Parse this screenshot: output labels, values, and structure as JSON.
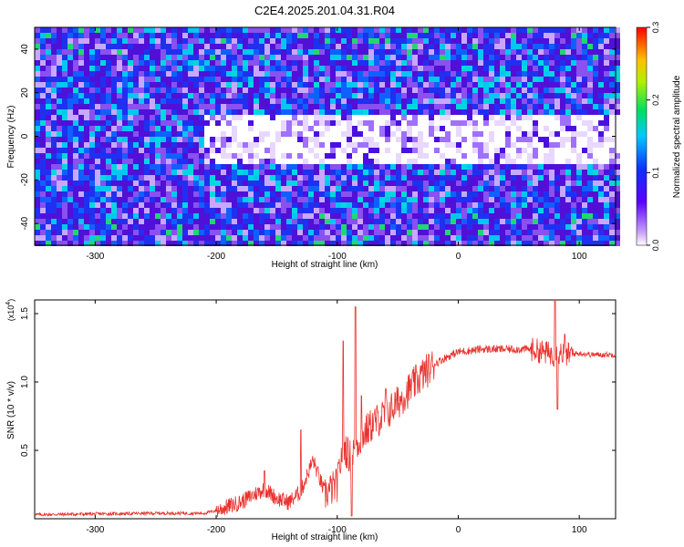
{
  "figure_title": "C2E4.2025.201.04.31.R04",
  "colors": {
    "snr_line": "#e8322e",
    "frame": "#000000"
  },
  "chart_data": [
    {
      "type": "heatmap",
      "xlabel": "Height of straight line (km)",
      "ylabel": "Frequency (Hz)",
      "xlim": [
        -350,
        130
      ],
      "ylim": [
        -50,
        50
      ],
      "x_ticks": [
        -300,
        -200,
        -100,
        0,
        100
      ],
      "x_tick_labels": [
        "-300",
        "-200",
        "-100",
        "0",
        "100"
      ],
      "y_ticks": [
        -40,
        -20,
        0,
        20,
        40
      ],
      "y_tick_labels": [
        "-40",
        "-20",
        "0",
        "20",
        "40"
      ],
      "colorbar": {
        "label": "Normalized spectral amplitude",
        "range": [
          0.0,
          0.3
        ],
        "ticks": [
          0.0,
          0.1,
          0.2,
          0.3
        ],
        "tick_labels": [
          "0.0",
          "0.1",
          "0.2",
          "0.3"
        ],
        "colormap": "rainbow (white/violet low -> blue -> cyan -> green -> yellow -> red high)"
      },
      "description_of_pattern": "Noisy blue/violet/cyan speckle over the whole field; a low-amplitude (white/light-violet) band centred near 0 Hz appears from about -210 km upward and spans roughly +/-12 Hz.",
      "low_band": {
        "start_x": -210,
        "center_hz": 0,
        "half_width_hz": 12
      }
    },
    {
      "type": "line",
      "xlabel": "Height of straight line (km)",
      "ylabel": "SNR (10 * v/v)",
      "y_scale_label": "(x10",
      "y_scale_exponent": "4",
      "xlim": [
        -350,
        130
      ],
      "ylim": [
        0,
        1.6
      ],
      "x_ticks": [
        -300,
        -200,
        -100,
        0,
        100
      ],
      "x_tick_labels": [
        "-300",
        "-200",
        "-100",
        "0",
        "100"
      ],
      "y_ticks": [
        0.5,
        1.0,
        1.5
      ],
      "y_tick_labels": [
        "0.5",
        "1.0",
        "1.5"
      ],
      "series": [
        {
          "color": "#e8322e",
          "x": [
            -350,
            -300,
            -250,
            -210,
            -200,
            -190,
            -180,
            -170,
            -160,
            -150,
            -140,
            -130,
            -120,
            -110,
            -100,
            -95,
            -90,
            -85,
            -80,
            -70,
            -60,
            -50,
            -40,
            -30,
            -20,
            -10,
            0,
            20,
            40,
            60,
            70,
            80,
            85,
            90,
            100,
            110,
            130
          ],
          "y": [
            0.03,
            0.035,
            0.04,
            0.04,
            0.06,
            0.09,
            0.12,
            0.17,
            0.22,
            0.15,
            0.12,
            0.2,
            0.43,
            0.18,
            0.25,
            0.55,
            0.45,
            0.52,
            0.6,
            0.7,
            0.76,
            0.85,
            0.95,
            1.05,
            1.13,
            1.18,
            1.22,
            1.24,
            1.24,
            1.24,
            1.22,
            1.2,
            1.22,
            1.2,
            1.21,
            1.2,
            1.2
          ],
          "spikes": [
            [
              -160,
              0.35
            ],
            [
              -130,
              0.65
            ],
            [
              -95,
              1.3
            ],
            [
              -88,
              0.02
            ],
            [
              -85,
              1.55
            ],
            [
              -80,
              0.9
            ],
            [
              -60,
              0.95
            ],
            [
              80,
              1.6
            ],
            [
              82,
              0.8
            ],
            [
              88,
              1.35
            ]
          ]
        }
      ]
    }
  ]
}
